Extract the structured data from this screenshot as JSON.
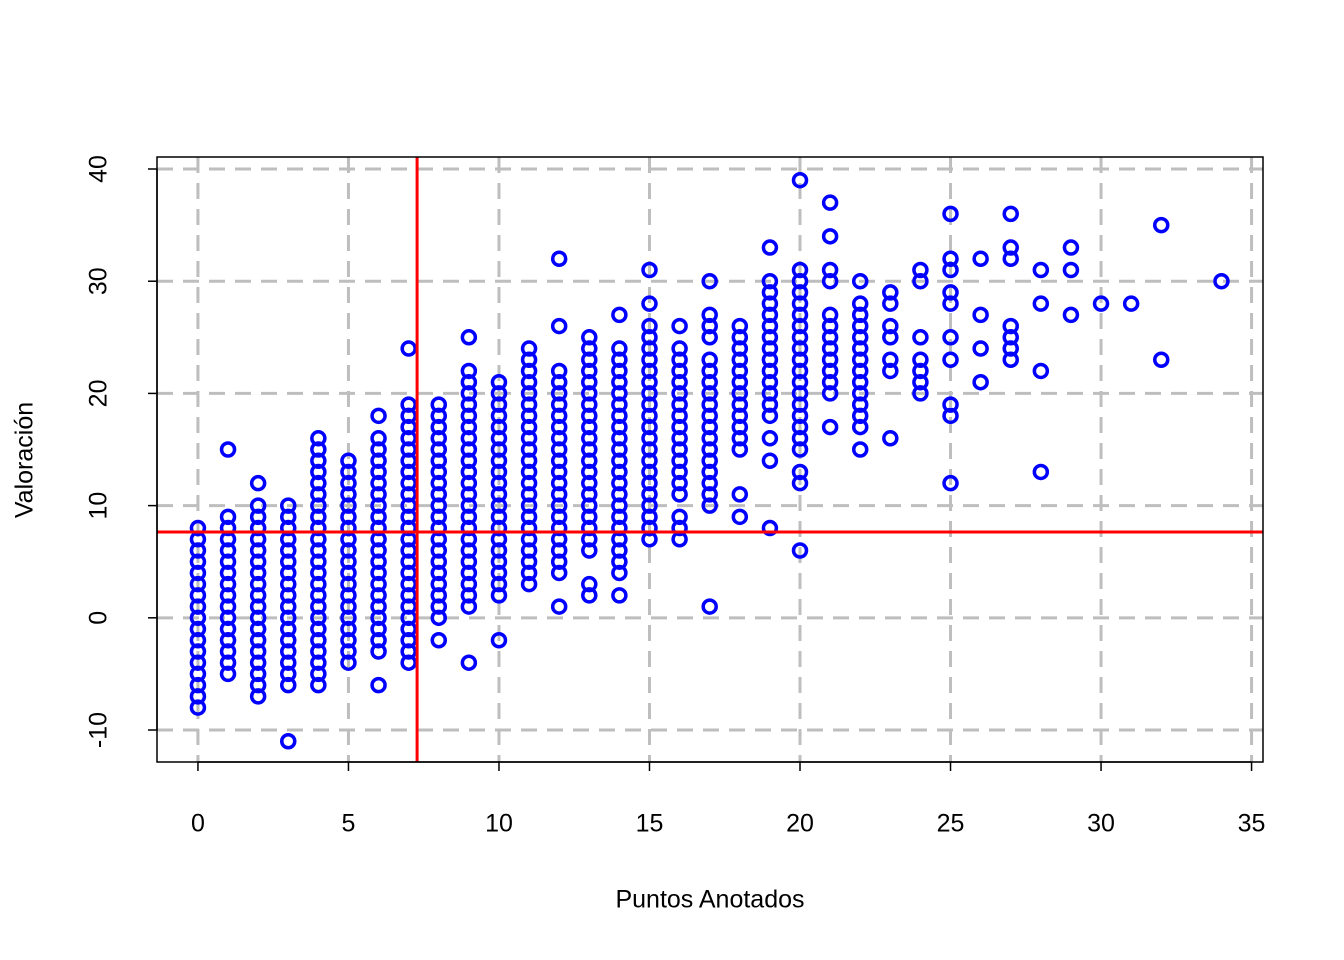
{
  "chart_data": {
    "type": "scatter",
    "x_label": "Puntos Anotados",
    "y_label": "Valoración",
    "color": "#0000ff",
    "ref_color": "#ff0000",
    "vline": 7.28,
    "hline": 7.65,
    "grid": true,
    "xlim": [
      -1.36,
      35.38
    ],
    "ylim": [
      -12.85,
      41.07
    ],
    "xticks": [
      0,
      5,
      10,
      15,
      20,
      25,
      30,
      35
    ],
    "yticks": [
      -10,
      0,
      10,
      20,
      30,
      40
    ],
    "x": [
      0,
      0,
      0,
      0,
      0,
      0,
      0,
      0,
      0,
      0,
      0,
      0,
      0,
      0,
      0,
      0,
      0,
      1,
      1,
      1,
      1,
      1,
      1,
      1,
      1,
      1,
      1,
      1,
      1,
      1,
      1,
      1,
      1,
      2,
      2,
      2,
      2,
      2,
      2,
      2,
      2,
      2,
      2,
      2,
      2,
      2,
      2,
      2,
      2,
      2,
      2,
      2,
      3,
      3,
      3,
      3,
      3,
      3,
      3,
      3,
      3,
      3,
      3,
      3,
      3,
      3,
      3,
      3,
      3,
      3,
      4,
      4,
      4,
      4,
      4,
      4,
      4,
      4,
      4,
      4,
      4,
      4,
      4,
      4,
      4,
      4,
      4,
      4,
      4,
      4,
      4,
      4,
      4,
      5,
      5,
      5,
      5,
      5,
      5,
      5,
      5,
      5,
      5,
      5,
      5,
      5,
      5,
      5,
      5,
      5,
      5,
      5,
      6,
      6,
      6,
      6,
      6,
      6,
      6,
      6,
      6,
      6,
      6,
      6,
      6,
      6,
      6,
      6,
      6,
      6,
      6,
      6,
      6,
      6,
      7,
      7,
      7,
      7,
      7,
      7,
      7,
      7,
      7,
      7,
      7,
      7,
      7,
      7,
      7,
      7,
      7,
      7,
      7,
      7,
      7,
      7,
      7,
      7,
      7,
      8,
      8,
      8,
      8,
      8,
      8,
      8,
      8,
      8,
      8,
      8,
      8,
      8,
      8,
      8,
      8,
      8,
      8,
      8,
      8,
      8,
      9,
      9,
      9,
      9,
      9,
      9,
      9,
      9,
      9,
      9,
      9,
      9,
      9,
      9,
      9,
      9,
      9,
      9,
      9,
      9,
      9,
      9,
      9,
      9,
      10,
      10,
      10,
      10,
      10,
      10,
      10,
      10,
      10,
      10,
      10,
      10,
      10,
      10,
      10,
      10,
      10,
      10,
      10,
      10,
      10,
      11,
      11,
      11,
      11,
      11,
      11,
      11,
      11,
      11,
      11,
      11,
      11,
      11,
      11,
      11,
      11,
      11,
      11,
      11,
      11,
      11,
      11,
      12,
      12,
      12,
      12,
      12,
      12,
      12,
      12,
      12,
      12,
      12,
      12,
      12,
      12,
      12,
      12,
      12,
      12,
      12,
      12,
      12,
      12,
      13,
      13,
      13,
      13,
      13,
      13,
      13,
      13,
      13,
      13,
      13,
      13,
      13,
      13,
      13,
      13,
      13,
      13,
      13,
      13,
      13,
      13,
      14,
      14,
      14,
      14,
      14,
      14,
      14,
      14,
      14,
      14,
      14,
      14,
      14,
      14,
      14,
      14,
      14,
      14,
      14,
      14,
      14,
      14,
      14,
      15,
      15,
      15,
      15,
      15,
      15,
      15,
      15,
      15,
      15,
      15,
      15,
      15,
      15,
      15,
      15,
      15,
      15,
      15,
      15,
      15,
      15,
      16,
      16,
      16,
      16,
      16,
      16,
      16,
      16,
      16,
      16,
      16,
      16,
      16,
      16,
      16,
      16,
      16,
      16,
      17,
      17,
      17,
      17,
      17,
      17,
      17,
      17,
      17,
      17,
      17,
      17,
      17,
      17,
      17,
      17,
      17,
      17,
      17,
      18,
      18,
      18,
      18,
      18,
      18,
      18,
      18,
      18,
      18,
      18,
      18,
      18,
      18,
      19,
      19,
      19,
      19,
      19,
      19,
      19,
      19,
      19,
      19,
      19,
      19,
      19,
      19,
      19,
      19,
      19,
      20,
      20,
      20,
      20,
      20,
      20,
      20,
      20,
      20,
      20,
      20,
      20,
      20,
      20,
      20,
      20,
      20,
      20,
      20,
      20,
      20,
      21,
      21,
      21,
      21,
      21,
      21,
      21,
      21,
      21,
      21,
      21,
      21,
      21,
      22,
      22,
      22,
      22,
      22,
      22,
      22,
      22,
      22,
      22,
      22,
      22,
      22,
      22,
      23,
      23,
      23,
      23,
      23,
      23,
      23,
      24,
      24,
      24,
      24,
      24,
      24,
      24,
      25,
      25,
      25,
      25,
      25,
      25,
      25,
      25,
      25,
      25,
      26,
      26,
      26,
      26,
      27,
      27,
      27,
      27,
      27,
      27,
      27,
      28,
      28,
      28,
      28,
      29,
      29,
      29,
      30,
      31,
      32,
      32,
      34
    ],
    "y": [
      -8,
      -7,
      -6,
      -5,
      -4,
      -3,
      -2,
      -1,
      0,
      1,
      2,
      3,
      4,
      5,
      6,
      7,
      8,
      -5,
      -4,
      -3,
      -2,
      -1,
      0,
      1,
      2,
      3,
      4,
      5,
      6,
      7,
      8,
      9,
      15,
      -7,
      -6,
      -5,
      -4,
      -3,
      -2,
      -1,
      0,
      1,
      2,
      3,
      4,
      5,
      6,
      7,
      8,
      9,
      10,
      12,
      -11,
      -6,
      -5,
      -4,
      -3,
      -2,
      -1,
      0,
      1,
      2,
      3,
      4,
      5,
      6,
      7,
      8,
      9,
      10,
      -6,
      -5,
      -4,
      -3,
      -2,
      -1,
      0,
      1,
      2,
      3,
      4,
      5,
      6,
      7,
      8,
      9,
      10,
      11,
      12,
      13,
      14,
      15,
      16,
      -4,
      -3,
      -2,
      -1,
      0,
      1,
      2,
      3,
      4,
      5,
      6,
      7,
      8,
      9,
      10,
      11,
      12,
      13,
      14,
      -6,
      -3,
      -2,
      -1,
      0,
      1,
      2,
      3,
      4,
      5,
      6,
      7,
      8,
      9,
      10,
      11,
      12,
      13,
      14,
      15,
      16,
      18,
      -4,
      -3,
      -2,
      -1,
      0,
      1,
      2,
      3,
      4,
      5,
      6,
      7,
      8,
      9,
      10,
      11,
      12,
      13,
      14,
      15,
      16,
      17,
      18,
      19,
      24,
      -2,
      0,
      1,
      2,
      3,
      4,
      5,
      6,
      7,
      8,
      9,
      10,
      11,
      12,
      13,
      14,
      15,
      16,
      17,
      18,
      19,
      -4,
      1,
      2,
      3,
      4,
      5,
      6,
      7,
      8,
      9,
      10,
      11,
      12,
      13,
      14,
      15,
      16,
      17,
      18,
      19,
      20,
      21,
      22,
      25,
      -2,
      2,
      3,
      4,
      5,
      6,
      7,
      8,
      9,
      10,
      11,
      12,
      13,
      14,
      15,
      16,
      17,
      18,
      19,
      20,
      21,
      3,
      4,
      5,
      6,
      7,
      8,
      9,
      10,
      11,
      12,
      13,
      14,
      15,
      16,
      17,
      18,
      19,
      20,
      21,
      22,
      23,
      24,
      1,
      4,
      5,
      6,
      7,
      8,
      9,
      10,
      11,
      12,
      13,
      14,
      15,
      16,
      17,
      18,
      19,
      20,
      21,
      22,
      26,
      32,
      2,
      3,
      6,
      7,
      8,
      9,
      10,
      11,
      12,
      13,
      14,
      15,
      16,
      17,
      18,
      19,
      20,
      21,
      22,
      23,
      24,
      25,
      2,
      4,
      5,
      6,
      7,
      8,
      9,
      10,
      11,
      12,
      13,
      14,
      15,
      16,
      17,
      18,
      19,
      20,
      21,
      22,
      23,
      24,
      27,
      7,
      8,
      9,
      10,
      11,
      12,
      13,
      14,
      15,
      16,
      17,
      18,
      19,
      20,
      21,
      22,
      23,
      24,
      25,
      26,
      28,
      31,
      7,
      8,
      9,
      11,
      12,
      13,
      14,
      15,
      16,
      17,
      18,
      19,
      20,
      21,
      22,
      23,
      24,
      26,
      1,
      10,
      11,
      12,
      13,
      14,
      15,
      16,
      17,
      18,
      19,
      20,
      21,
      22,
      23,
      25,
      26,
      27,
      30,
      9,
      11,
      15,
      16,
      17,
      18,
      19,
      20,
      21,
      22,
      23,
      24,
      25,
      26,
      8,
      14,
      16,
      18,
      19,
      20,
      21,
      22,
      23,
      24,
      25,
      26,
      27,
      28,
      29,
      30,
      33,
      6,
      12,
      13,
      15,
      16,
      17,
      18,
      19,
      20,
      21,
      22,
      23,
      24,
      25,
      26,
      27,
      28,
      29,
      30,
      31,
      39,
      17,
      20,
      21,
      22,
      23,
      24,
      25,
      26,
      27,
      30,
      31,
      34,
      37,
      15,
      17,
      18,
      19,
      20,
      21,
      22,
      23,
      24,
      25,
      26,
      27,
      28,
      30,
      16,
      22,
      23,
      25,
      26,
      28,
      29,
      20,
      21,
      22,
      23,
      25,
      30,
      31,
      12,
      18,
      19,
      23,
      25,
      28,
      29,
      31,
      32,
      36,
      21,
      24,
      27,
      32,
      23,
      24,
      25,
      26,
      32,
      33,
      36,
      13,
      22,
      28,
      31,
      27,
      31,
      33,
      28,
      28,
      23,
      35,
      30
    ]
  }
}
